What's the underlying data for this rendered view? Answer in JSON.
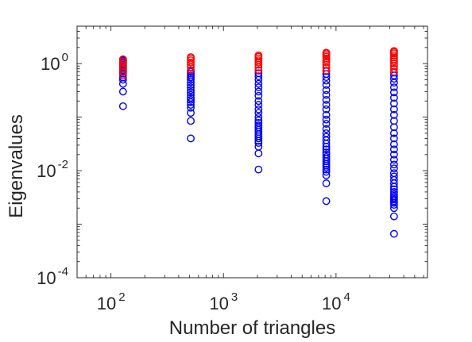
{
  "chart_data": {
    "type": "scatter",
    "title": "",
    "xlabel": "Number of triangles",
    "ylabel": "Eigenvalues",
    "xscale": "log",
    "yscale": "log",
    "xlim": [
      50,
      65000
    ],
    "ylim": [
      0.0001,
      5
    ],
    "grid": false,
    "legend": "none",
    "x_ticks": [
      {
        "base": "10",
        "exp": "2",
        "value": 100
      },
      {
        "base": "10",
        "exp": "3",
        "value": 1000
      },
      {
        "base": "10",
        "exp": "4",
        "value": 10000
      }
    ],
    "y_ticks": [
      {
        "base": "10",
        "exp": "0",
        "value": 1
      },
      {
        "base": "10",
        "exp": "-2",
        "value": 0.01
      },
      {
        "base": "10",
        "exp": "-4",
        "value": 0.0001
      }
    ],
    "colors": {
      "lower_eigenvalues": "#0000ff",
      "upper_eigenvalues": "#ff0000",
      "axis": "#262626"
    },
    "series": [
      {
        "color_key": "lower_eigenvalues",
        "marker": "open-circle",
        "groups": [
          {
            "x": 128,
            "values": [
              0.16,
              0.3,
              0.42,
              0.5,
              0.55,
              0.6,
              0.65,
              0.7,
              0.75,
              0.8,
              0.85,
              0.9,
              0.95,
              1.0,
              1.05,
              1.1,
              1.15,
              1.2
            ]
          },
          {
            "x": 512,
            "values": [
              0.04,
              0.085,
              0.12,
              0.15,
              0.17,
              0.19,
              0.21,
              0.23,
              0.26,
              0.29,
              0.32,
              0.36,
              0.4,
              0.45,
              0.5,
              0.55,
              0.6,
              0.65,
              0.7,
              0.75
            ]
          },
          {
            "x": 2048,
            "values": [
              0.0105,
              0.021,
              0.028,
              0.033,
              0.036,
              0.04,
              0.044,
              0.048,
              0.053,
              0.058,
              0.064,
              0.07,
              0.078,
              0.087,
              0.1,
              0.12,
              0.14,
              0.17,
              0.2,
              0.25,
              0.3,
              0.36,
              0.42,
              0.5,
              0.58,
              0.66,
              0.74
            ]
          },
          {
            "x": 8192,
            "values": [
              0.0027,
              0.0058,
              0.0082,
              0.0095,
              0.0105,
              0.0115,
              0.0125,
              0.0135,
              0.015,
              0.0165,
              0.018,
              0.02,
              0.022,
              0.025,
              0.028,
              0.032,
              0.037,
              0.043,
              0.05,
              0.06,
              0.075,
              0.09,
              0.11,
              0.14,
              0.17,
              0.21,
              0.26,
              0.32,
              0.4,
              0.48,
              0.56,
              0.64,
              0.72
            ]
          },
          {
            "x": 32768,
            "values": [
              0.00066,
              0.0014,
              0.002,
              0.0023,
              0.0025,
              0.0027,
              0.0029,
              0.0031,
              0.0033,
              0.0036,
              0.004,
              0.0045,
              0.005,
              0.0058,
              0.0067,
              0.0078,
              0.009,
              0.011,
              0.013,
              0.016,
              0.02,
              0.025,
              0.031,
              0.04,
              0.05,
              0.065,
              0.085,
              0.11,
              0.14,
              0.18,
              0.23,
              0.29,
              0.36,
              0.44,
              0.52,
              0.6,
              0.68
            ]
          }
        ]
      },
      {
        "color_key": "upper_eigenvalues",
        "marker": "open-circle",
        "groups": [
          {
            "x": 128,
            "values": [
              0.6,
              0.7,
              0.8,
              0.9,
              1.0,
              1.1,
              1.2
            ]
          },
          {
            "x": 512,
            "values": [
              0.75,
              0.85,
              0.95,
              1.05,
              1.15,
              1.25,
              1.32
            ]
          },
          {
            "x": 2048,
            "values": [
              0.75,
              0.85,
              0.95,
              1.05,
              1.15,
              1.25,
              1.35,
              1.42
            ]
          },
          {
            "x": 8192,
            "values": [
              0.74,
              0.84,
              0.95,
              1.05,
              1.15,
              1.25,
              1.35,
              1.45,
              1.55,
              1.6
            ]
          },
          {
            "x": 32768,
            "values": [
              0.7,
              0.8,
              0.9,
              1.0,
              1.1,
              1.2,
              1.3,
              1.42,
              1.55,
              1.65,
              1.72
            ]
          }
        ]
      }
    ]
  }
}
